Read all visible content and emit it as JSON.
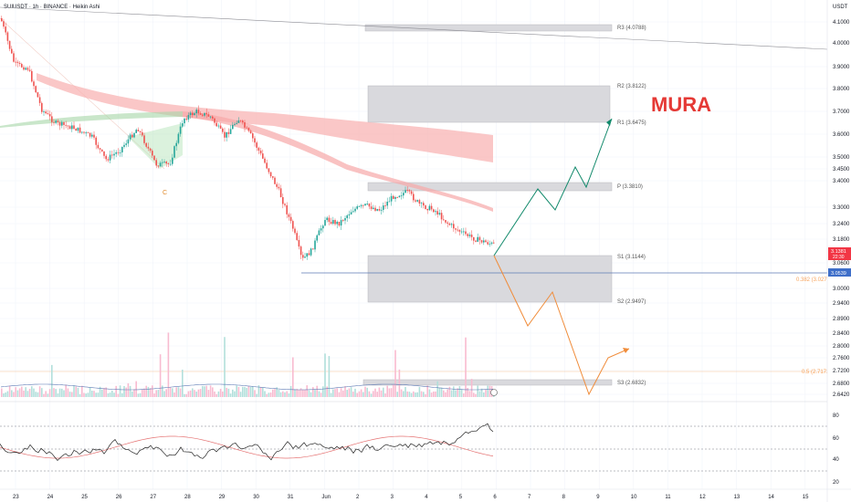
{
  "header": {
    "title": "SUIUSDT · 1h · BINANCE · Heikin Ashi",
    "currency": "USDT"
  },
  "watermark": "MURA",
  "colors": {
    "bull": "#26a69a",
    "bear": "#ef5350",
    "ribbon": "#f8b4b4",
    "pivot_box": "#d9d9dd",
    "path_up": "#138a6c",
    "path_down": "#f08c3a",
    "hline": "#5d7ab5",
    "fib": "#f7a35c",
    "price_badge": "#f23645",
    "alt_badge": "#3e6ec9",
    "rsi": "#222222",
    "rsi_ma": "#e57373"
  },
  "price_axis": {
    "ticks": [
      "4.1000",
      "4.0000",
      "3.9000",
      "3.8000",
      "3.7000",
      "3.6000",
      "3.5000",
      "3.4500",
      "3.4000",
      "3.3000",
      "3.2400",
      "3.1800",
      "3.0600",
      "3.0000",
      "2.9400",
      "2.8900",
      "2.8400",
      "2.8000",
      "2.7600",
      "2.7200",
      "2.6800",
      "2.6420"
    ],
    "current_price": "3.1381",
    "current_sub": "22:30",
    "level_badge": "3.0539"
  },
  "rsi_axis": {
    "ticks": [
      "80",
      "60",
      "40",
      "20"
    ]
  },
  "time_axis": {
    "labels": [
      "23",
      "24",
      "25",
      "26",
      "27",
      "28",
      "29",
      "30",
      "31",
      "Jun",
      "2",
      "3",
      "4",
      "5",
      "6",
      "7",
      "8",
      "9",
      "10",
      "11",
      "12",
      "13",
      "14",
      "15"
    ]
  },
  "pivots": {
    "r3": "R3 (4.0788)",
    "r2": "R2 (3.8122)",
    "r1": "R1 (3.6475)",
    "p": "P (3.3810)",
    "s1": "S1 (3.1144)",
    "s2": "S2 (2.9497)",
    "s3": "S3 (2.6832)"
  },
  "fib": {
    "f382": "0.382 (3.0279)",
    "f05": "0.5 (2.7172)"
  },
  "markers": {
    "c": "C"
  }
}
